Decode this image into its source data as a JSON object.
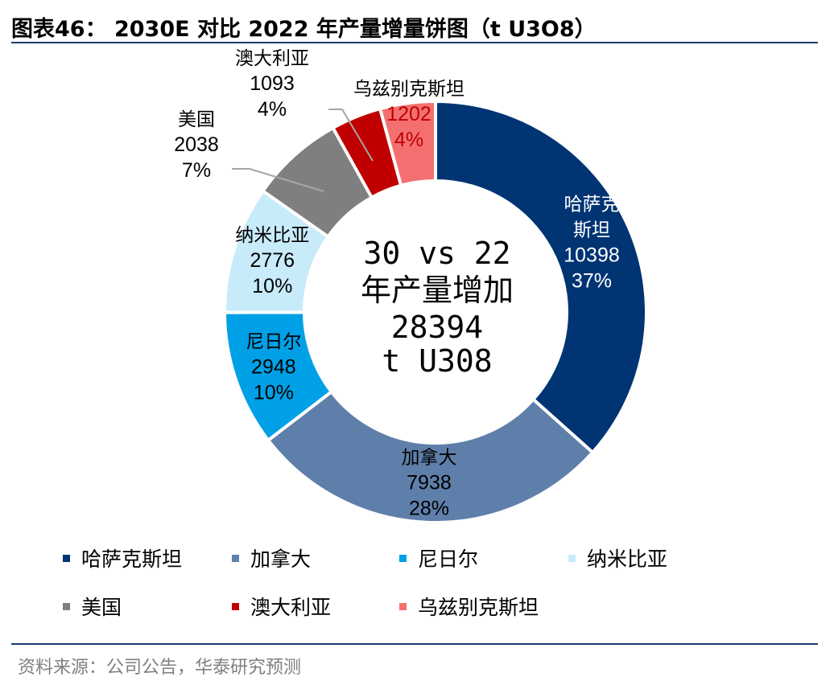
{
  "header": {
    "title": "图表46： 2030E 对比 2022 年产量增量饼图（t U3O8）"
  },
  "footer": {
    "source": "资料来源：公司公告，华泰研究预测"
  },
  "center_label": {
    "line1": "30 vs 22",
    "line2": "年产量增加",
    "line3": "28394",
    "line4": "t U308"
  },
  "chart_data": {
    "type": "pie",
    "subtype": "donut",
    "title": "2030E 对比 2022 年产量增量饼图（t U3O8）",
    "total": 28394,
    "series": [
      {
        "name": "哈萨克斯坦",
        "value": 10398,
        "percent": "37%",
        "color": "#003473",
        "label_color": "#ffffff"
      },
      {
        "name": "加拿大",
        "value": 7938,
        "percent": "28%",
        "color": "#5f7fab",
        "label_color": "#000000"
      },
      {
        "name": "尼日尔",
        "value": 2948,
        "percent": "10%",
        "color": "#00a0e6",
        "label_color": "#000000"
      },
      {
        "name": "纳米比亚",
        "value": 2776,
        "percent": "10%",
        "color": "#c8ebfa",
        "label_color": "#000000"
      },
      {
        "name": "美国",
        "value": 2038,
        "percent": "7%",
        "color": "#7f7f7f",
        "label_color": "#000000"
      },
      {
        "name": "澳大利亚",
        "value": 1093,
        "percent": "4%",
        "color": "#c00000",
        "label_color": "#000000"
      },
      {
        "name": "乌兹别克斯坦",
        "value": 1202,
        "percent": "4%",
        "color": "#f47070",
        "label_color": "#000000"
      }
    ],
    "legend_position": "bottom"
  }
}
